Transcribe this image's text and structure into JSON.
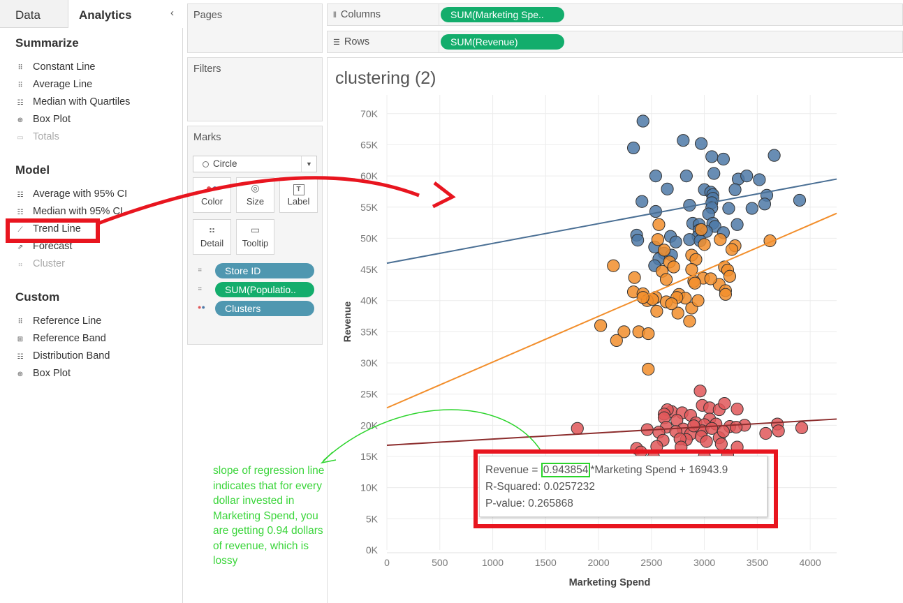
{
  "left_panel": {
    "tabs": {
      "data": "Data",
      "analytics": "Analytics"
    },
    "collapse_icon": "chevron-left",
    "sections": {
      "summarize": {
        "title": "Summarize",
        "items": [
          "Constant Line",
          "Average Line",
          "Median with Quartiles",
          "Box Plot",
          "Totals"
        ]
      },
      "model": {
        "title": "Model",
        "items": [
          "Average with 95% CI",
          "Median with 95% CI",
          "Trend Line",
          "Forecast",
          "Cluster"
        ]
      },
      "custom": {
        "title": "Custom",
        "items": [
          "Reference Line",
          "Reference Band",
          "Distribution Band",
          "Box Plot"
        ]
      }
    }
  },
  "cards": {
    "pages": "Pages",
    "filters": "Filters",
    "marks": {
      "title": "Marks",
      "mark_type": "Circle",
      "buttons": {
        "color": "Color",
        "size": "Size",
        "label": "Label",
        "detail": "Detail",
        "tooltip": "Tooltip"
      },
      "pills": [
        "Store ID",
        "SUM(Populatio..",
        "Clusters"
      ]
    }
  },
  "shelves": {
    "columns_label": "Columns",
    "columns_pill": "SUM(Marketing Spe..",
    "rows_label": "Rows",
    "rows_pill": "SUM(Revenue)"
  },
  "sheet_title": "clustering (2)",
  "tooltip": {
    "prefix": "Revenue = ",
    "slope": "0.943854",
    "suffix": "*Marketing Spend + 16943.9",
    "r_squared": "R-Squared: 0.0257232",
    "p_value": "P-value: 0.265868"
  },
  "annotation": "slope of regression line indicates that for every dollar invested in Marketing Spend, you are getting 0.94 dollars of revenue, which is lossy",
  "colors": {
    "blue_cluster": "#4e79a7",
    "orange_cluster": "#f28e2b",
    "red_cluster": "#e15759",
    "highlight_red": "#e8151f",
    "highlight_green": "#2bd42b",
    "pill_green": "#13ad6c",
    "pill_blue": "#4f97b0"
  },
  "chart_data": {
    "type": "scatter",
    "title": "",
    "xlabel": "Marketing Spend",
    "ylabel": "Revenue",
    "xlim": [
      0,
      4250
    ],
    "ylim": [
      0,
      73000
    ],
    "x_ticks": [
      "0",
      "500",
      "1000",
      "1500",
      "2000",
      "2500",
      "3000",
      "3500",
      "4000"
    ],
    "y_ticks": [
      "0K",
      "5K",
      "10K",
      "15K",
      "20K",
      "25K",
      "30K",
      "35K",
      "40K",
      "45K",
      "50K",
      "55K",
      "60K",
      "65K",
      "70K"
    ],
    "grid": true,
    "series": [
      {
        "color": "#4e79a7",
        "trend": [
          [
            0,
            46000
          ],
          [
            4250,
            59500
          ]
        ],
        "points": [
          [
            2420,
            68800
          ],
          [
            2330,
            64500
          ],
          [
            2800,
            65700
          ],
          [
            2970,
            65200
          ],
          [
            3660,
            63300
          ],
          [
            3070,
            63100
          ],
          [
            3180,
            62700
          ],
          [
            2540,
            60000
          ],
          [
            2830,
            60000
          ],
          [
            3090,
            60400
          ],
          [
            3320,
            59500
          ],
          [
            3400,
            60000
          ],
          [
            3520,
            59400
          ],
          [
            2650,
            57900
          ],
          [
            3000,
            57800
          ],
          [
            3060,
            57400
          ],
          [
            3290,
            57800
          ],
          [
            3080,
            57000
          ],
          [
            3080,
            56400
          ],
          [
            3070,
            55700
          ],
          [
            3590,
            56900
          ],
          [
            3900,
            56100
          ],
          [
            3570,
            55500
          ],
          [
            3450,
            54800
          ],
          [
            2410,
            55900
          ],
          [
            2540,
            54300
          ],
          [
            2860,
            55300
          ],
          [
            3070,
            54900
          ],
          [
            3230,
            54800
          ],
          [
            3040,
            53900
          ],
          [
            2890,
            52400
          ],
          [
            2950,
            52200
          ],
          [
            3080,
            52400
          ],
          [
            3100,
            51900
          ],
          [
            3310,
            52200
          ],
          [
            2950,
            51300
          ],
          [
            3020,
            51100
          ],
          [
            3180,
            50900
          ],
          [
            2940,
            50300
          ],
          [
            2680,
            50300
          ],
          [
            2360,
            50500
          ],
          [
            2860,
            49800
          ],
          [
            2730,
            49400
          ],
          [
            2370,
            49700
          ],
          [
            2960,
            49600
          ],
          [
            2530,
            48600
          ],
          [
            2620,
            47600
          ],
          [
            2570,
            46700
          ],
          [
            2690,
            47300
          ],
          [
            2530,
            45600
          ]
        ]
      },
      {
        "color": "#f28e2b",
        "trend": [
          [
            0,
            22800
          ],
          [
            4250,
            54000
          ]
        ],
        "points": [
          [
            2570,
            52200
          ],
          [
            2970,
            51400
          ],
          [
            3150,
            49800
          ],
          [
            2560,
            49800
          ],
          [
            3000,
            49000
          ],
          [
            3290,
            48800
          ],
          [
            2620,
            48100
          ],
          [
            3260,
            48200
          ],
          [
            3620,
            49600
          ],
          [
            2880,
            47300
          ],
          [
            2920,
            46600
          ],
          [
            2670,
            46200
          ],
          [
            2710,
            45400
          ],
          [
            2140,
            45600
          ],
          [
            2880,
            45000
          ],
          [
            2600,
            44700
          ],
          [
            3190,
            45400
          ],
          [
            3220,
            44900
          ],
          [
            2990,
            43600
          ],
          [
            2340,
            43700
          ],
          [
            3240,
            43900
          ],
          [
            3140,
            42600
          ],
          [
            2900,
            43100
          ],
          [
            2640,
            43400
          ],
          [
            2910,
            42800
          ],
          [
            3200,
            41600
          ],
          [
            2330,
            41400
          ],
          [
            2420,
            41100
          ],
          [
            2760,
            41000
          ],
          [
            2820,
            40400
          ],
          [
            2540,
            40500
          ],
          [
            2460,
            40000
          ],
          [
            2510,
            40200
          ],
          [
            2740,
            40500
          ],
          [
            2640,
            39800
          ],
          [
            2880,
            38800
          ],
          [
            2550,
            38300
          ],
          [
            2750,
            38000
          ],
          [
            2020,
            36000
          ],
          [
            2860,
            36700
          ],
          [
            2240,
            35000
          ],
          [
            2170,
            33600
          ],
          [
            2380,
            35000
          ],
          [
            2470,
            34700
          ],
          [
            2470,
            29000
          ],
          [
            3200,
            41000
          ],
          [
            2940,
            40000
          ],
          [
            3060,
            43500
          ],
          [
            2420,
            40500
          ],
          [
            2690,
            39500
          ]
        ]
      },
      {
        "color": "#e15759",
        "trend": [
          [
            0,
            16800
          ],
          [
            4250,
            21000
          ]
        ],
        "points": [
          [
            2960,
            25500
          ],
          [
            2980,
            23200
          ],
          [
            3050,
            22800
          ],
          [
            3140,
            22500
          ],
          [
            3190,
            23500
          ],
          [
            3310,
            22600
          ],
          [
            2690,
            22200
          ],
          [
            2650,
            22500
          ],
          [
            2790,
            22000
          ],
          [
            2620,
            21800
          ],
          [
            2870,
            21600
          ],
          [
            3050,
            21000
          ],
          [
            2620,
            21200
          ],
          [
            2740,
            20800
          ],
          [
            2920,
            20400
          ],
          [
            3000,
            20100
          ],
          [
            3110,
            20200
          ],
          [
            3240,
            19800
          ],
          [
            3380,
            20000
          ],
          [
            3690,
            20200
          ],
          [
            3920,
            19600
          ],
          [
            1800,
            19500
          ],
          [
            2640,
            19700
          ],
          [
            2800,
            19400
          ],
          [
            2980,
            19100
          ],
          [
            3070,
            19500
          ],
          [
            3300,
            19700
          ],
          [
            2730,
            19000
          ],
          [
            2570,
            18900
          ],
          [
            2870,
            18600
          ],
          [
            2970,
            18200
          ],
          [
            3140,
            18000
          ],
          [
            3580,
            18700
          ],
          [
            3700,
            19100
          ],
          [
            2830,
            17700
          ],
          [
            3020,
            17400
          ],
          [
            3160,
            17000
          ],
          [
            2610,
            17600
          ],
          [
            2770,
            17800
          ],
          [
            3310,
            16500
          ],
          [
            2360,
            16300
          ],
          [
            2550,
            16600
          ],
          [
            2780,
            16500
          ],
          [
            2400,
            15700
          ],
          [
            2520,
            14900
          ],
          [
            3000,
            15000
          ],
          [
            3220,
            15200
          ],
          [
            2900,
            19900
          ],
          [
            2460,
            19300
          ],
          [
            3180,
            19000
          ]
        ]
      }
    ]
  }
}
